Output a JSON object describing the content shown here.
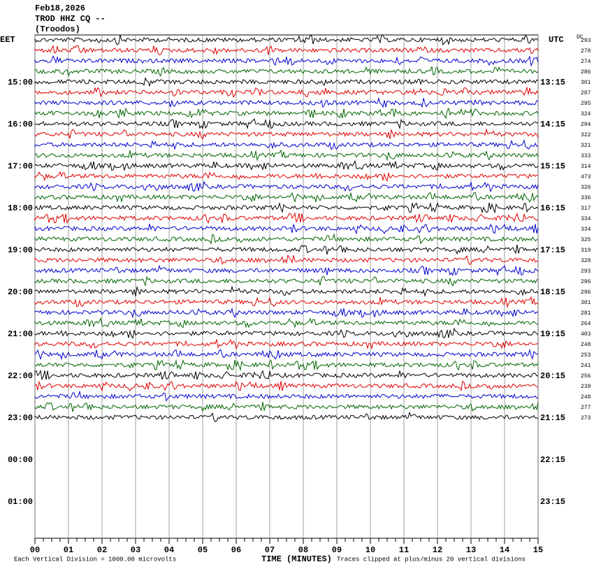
{
  "header": {
    "date": "Feb18,2026",
    "station": "TROD HHZ CQ --",
    "location": "(Troodos)"
  },
  "left_zone": "EET",
  "right_zone": "UTC",
  "dc_label": "DC",
  "left_times": [
    "15:00",
    "16:00",
    "17:00",
    "18:00",
    "19:00",
    "20:00",
    "21:00",
    "22:00",
    "23:00",
    "00:00",
    "01:00"
  ],
  "right_times": [
    "13:15",
    "14:15",
    "15:15",
    "16:15",
    "17:15",
    "18:15",
    "19:15",
    "20:15",
    "21:15",
    "22:15",
    "23:15"
  ],
  "dc_values": [
    "293",
    "278",
    "274",
    "286",
    "301",
    "287",
    "295",
    "324",
    "294",
    "322",
    "321",
    "333",
    "314",
    "473",
    "326",
    "336",
    "317",
    "334",
    "334",
    "325",
    "319",
    "328",
    "293",
    "296",
    "296",
    "301",
    "281",
    "264",
    "403",
    "248",
    "253",
    "241",
    "256",
    "239",
    "248",
    "277",
    "273"
  ],
  "x_labels": [
    "00",
    "01",
    "02",
    "03",
    "04",
    "05",
    "06",
    "07",
    "08",
    "09",
    "10",
    "11",
    "12",
    "13",
    "14",
    "15"
  ],
  "x_title": "TIME (MINUTES)",
  "footer_left": "Each Vertical Division = 1000.00 microvolts",
  "footer_right": "Traces clipped at plus/minus 20 vertical divisions"
}
